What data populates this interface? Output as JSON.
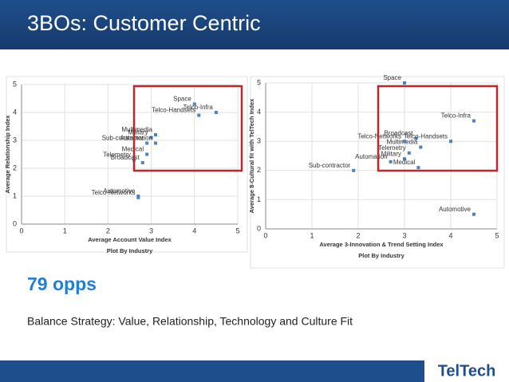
{
  "title": "3BOs: Customer Centric",
  "headline": "79 opps",
  "caption": "Balance Strategy: Value, Relationship, Technology and Culture Fit",
  "logo": "TelTech",
  "chart_data": [
    {
      "type": "scatter",
      "subtitle": "Plot By Industry",
      "x_label": "Average Account Value Index",
      "y_label": "Average Relationship Index",
      "point_labels": [
        "Space",
        "Telco-Infra",
        "Telco-Handsets",
        "Multimedia",
        "Military",
        "Automation",
        "Sub-contractor",
        "Medical",
        "Telemetry",
        "Broadcast",
        "Automotive",
        "Telco-Networks"
      ],
      "x": [
        4.0,
        4.5,
        4.1,
        3.1,
        3.0,
        3.1,
        2.9,
        2.9,
        2.6,
        2.8,
        2.7,
        2.7
      ],
      "values": [
        4.3,
        4.0,
        3.9,
        3.2,
        3.1,
        2.9,
        2.9,
        2.5,
        2.3,
        2.2,
        1.0,
        0.95
      ],
      "color": "#4f81bd",
      "xlim": [
        0,
        5
      ],
      "ylim": [
        0,
        5
      ],
      "xticks": [
        0,
        1,
        2,
        3,
        4,
        5
      ],
      "yticks": [
        0,
        1,
        2,
        3,
        4,
        5
      ],
      "grid": true
    },
    {
      "type": "scatter",
      "subtitle": "Plot By Industry",
      "x_label": "Average 3-Innovation & Trend Setting Index",
      "y_label": "Average 8-Cultural fit with TelTech Index",
      "point_labels": [
        "Space",
        "Telco-Infra",
        "Broadcast",
        "Multimedia",
        "Telco-Networks",
        "Telco-Handsets",
        "Telemetry",
        "Military",
        "Sub-contractor",
        "Medical",
        "Automation",
        "Automotive"
      ],
      "x": [
        3.0,
        4.5,
        3.25,
        3.35,
        3.0,
        4.0,
        3.1,
        3.0,
        1.9,
        3.3,
        2.7,
        4.5
      ],
      "values": [
        5.0,
        3.7,
        3.1,
        2.8,
        3.0,
        3.0,
        2.6,
        2.4,
        2.0,
        2.1,
        2.3,
        0.5
      ],
      "color": "#4f81bd",
      "xlim": [
        0,
        5
      ],
      "ylim": [
        0,
        5
      ],
      "xticks": [
        0,
        1,
        2,
        3,
        4,
        5
      ],
      "yticks": [
        0,
        1,
        2,
        3,
        4,
        5
      ],
      "grid": true
    }
  ]
}
